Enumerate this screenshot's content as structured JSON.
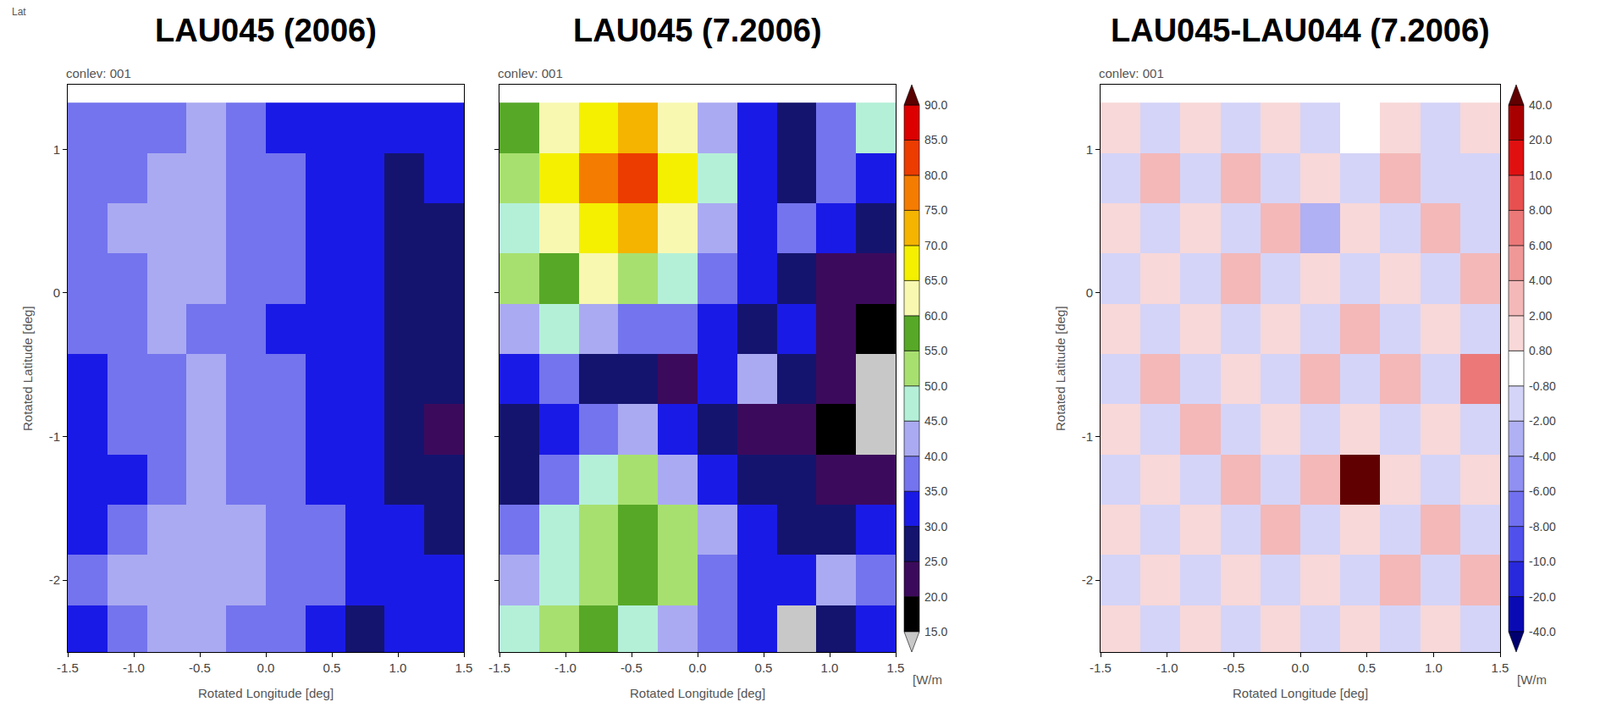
{
  "corner_label": "Lat",
  "chart_data": [
    {
      "type": "heatmap",
      "title": "LAU045 (2006)",
      "subtitle": "conlev: 001",
      "xlabel": "Rotated Longitude [deg]",
      "ylabel": "Rotated Latitude [deg]",
      "x": [
        -1.35,
        -1.05,
        -0.75,
        -0.45,
        -0.15,
        0.15,
        0.45,
        0.75,
        1.05,
        1.35
      ],
      "y": [
        -2.35,
        -2.0,
        -1.65,
        -1.3,
        -0.95,
        -0.6,
        -0.25,
        0.1,
        0.45,
        0.8,
        1.15
      ],
      "z": [
        [
          32,
          38,
          40,
          40,
          38,
          36,
          30,
          28,
          34,
          30
        ],
        [
          36,
          40,
          41,
          42,
          40,
          38,
          36,
          34,
          32,
          30
        ],
        [
          33,
          37,
          40,
          41,
          40,
          38,
          35,
          33,
          30,
          28
        ],
        [
          30,
          34,
          38,
          40,
          39,
          38,
          34,
          32,
          29,
          27
        ],
        [
          32,
          35,
          38,
          40,
          38,
          37,
          32,
          30,
          27,
          24
        ],
        [
          33,
          36,
          38,
          40,
          38,
          35,
          33,
          30,
          28,
          26
        ],
        [
          35,
          37,
          40,
          39,
          37,
          34,
          33,
          31,
          29,
          27
        ],
        [
          36,
          38,
          40,
          41,
          37,
          35,
          32,
          30,
          28,
          28
        ],
        [
          38,
          40,
          42,
          40,
          38,
          36,
          34,
          32,
          28,
          27
        ],
        [
          37,
          38,
          40,
          42,
          38,
          36,
          33,
          30,
          28,
          30
        ],
        [
          38,
          36,
          38,
          40,
          37,
          33,
          30,
          31,
          32,
          30
        ]
      ],
      "xlim": [
        -1.5,
        1.5
      ],
      "ylim": [
        -2.5,
        1.45
      ],
      "xticks": [
        -1.5,
        {
          "value": -1,
          "label": "-1.0"
        },
        -0.5,
        {
          "value": 0,
          "label": "0.0"
        },
        0.5,
        {
          "value": 1,
          "label": "1.0"
        },
        1.5
      ],
      "yticks": [
        -2,
        -1,
        0,
        1
      ]
    },
    {
      "type": "heatmap",
      "title": "LAU045 (7.2006)",
      "subtitle": "conlev: 001",
      "xlabel": "Rotated Longitude [deg]",
      "tick_labels": "x",
      "x": [
        -1.35,
        -1.05,
        -0.75,
        -0.45,
        -0.15,
        0.15,
        0.45,
        0.75,
        1.05,
        1.35
      ],
      "y": [
        -2.35,
        -2.0,
        -1.65,
        -1.3,
        -0.95,
        -0.6,
        -0.25,
        0.1,
        0.45,
        0.8,
        1.15
      ],
      "z": [
        [
          45,
          50,
          55,
          48,
          42,
          35,
          30,
          14,
          25,
          30
        ],
        [
          40,
          48,
          52,
          55,
          50,
          38,
          32,
          30,
          40,
          35
        ],
        [
          35,
          45,
          50,
          55,
          52,
          40,
          30,
          28,
          25,
          30
        ],
        [
          28,
          35,
          45,
          50,
          40,
          30,
          25,
          25,
          20,
          24
        ],
        [
          25,
          30,
          35,
          40,
          30,
          25,
          20,
          22,
          18,
          14
        ],
        [
          30,
          35,
          28,
          25,
          22,
          30,
          40,
          25,
          20,
          14
        ],
        [
          40,
          45,
          40,
          35,
          35,
          30,
          25,
          30,
          22,
          18
        ],
        [
          50,
          55,
          60,
          50,
          45,
          35,
          30,
          25,
          20,
          22
        ],
        [
          45,
          60,
          68,
          70,
          60,
          42,
          30,
          35,
          30,
          25
        ],
        [
          50,
          65,
          75,
          80,
          68,
          45,
          30,
          28,
          35,
          30
        ],
        [
          55,
          60,
          65,
          70,
          60,
          40,
          30,
          25,
          35,
          45
        ]
      ],
      "xlim": [
        -1.5,
        1.5
      ],
      "ylim": [
        -2.5,
        1.45
      ],
      "xticks": [
        -1.5,
        {
          "value": -1,
          "label": "-1.0"
        },
        -0.5,
        {
          "value": 0,
          "label": "0.0"
        },
        0.5,
        {
          "value": 1,
          "label": "1.0"
        },
        1.5
      ],
      "yticks": [
        -2,
        -1,
        0,
        1
      ],
      "colorbar": {
        "levels": [
          15,
          20,
          25,
          30,
          35,
          40,
          45,
          50,
          55,
          60,
          65,
          70,
          75,
          80,
          85,
          90
        ],
        "colors": [
          "#c8c8c8",
          "#000000",
          "#3c0a5c",
          "#14146e",
          "#1a1ae6",
          "#7474ee",
          "#aaaaf2",
          "#b4f0d8",
          "#a8e070",
          "#58a828",
          "#f8f8b0",
          "#f4f000",
          "#f4b400",
          "#f47c00",
          "#ec3c00",
          "#dc0000",
          "#5a0000"
        ],
        "ticks": [
          {
            "value": 15,
            "label": "15.0"
          },
          {
            "value": 20,
            "label": "20.0"
          },
          {
            "value": 25,
            "label": "25.0"
          },
          {
            "value": 30,
            "label": "30.0"
          },
          {
            "value": 35,
            "label": "35.0"
          },
          {
            "value": 40,
            "label": "40.0"
          },
          {
            "value": 45,
            "label": "45.0"
          },
          {
            "value": 50,
            "label": "50.0"
          },
          {
            "value": 55,
            "label": "55.0"
          },
          {
            "value": 60,
            "label": "60.0"
          },
          {
            "value": 65,
            "label": "65.0"
          },
          {
            "value": 70,
            "label": "70.0"
          },
          {
            "value": 75,
            "label": "75.0"
          },
          {
            "value": 80,
            "label": "80.0"
          },
          {
            "value": 85,
            "label": "85.0"
          },
          {
            "value": 90,
            "label": "90.0"
          }
        ],
        "unit": "[W/m"
      }
    },
    {
      "type": "heatmap",
      "title": "LAU045-LAU044 (7.2006)",
      "subtitle": "conlev: 001",
      "xlabel": "Rotated Longitude [deg]",
      "ylabel": "Rotated Latitude [deg]",
      "x": [
        -1.35,
        -1.05,
        -0.75,
        -0.45,
        -0.15,
        0.15,
        0.45,
        0.75,
        1.05,
        1.35
      ],
      "y": [
        -2.35,
        -2.0,
        -1.65,
        -1.3,
        -0.95,
        -0.6,
        -0.25,
        0.1,
        0.45,
        0.8,
        1.15
      ],
      "z": [
        [
          1,
          -1,
          1,
          -1,
          1,
          -1,
          1,
          -1,
          1,
          -1
        ],
        [
          -1,
          1,
          -2,
          1,
          -1,
          1,
          -1,
          2,
          -1,
          3
        ],
        [
          1,
          -1,
          1,
          -1,
          2,
          -1,
          1,
          -1,
          2,
          -1
        ],
        [
          -1,
          1,
          -1,
          2,
          -1,
          2,
          45,
          1,
          -1,
          1
        ],
        [
          1,
          -1,
          2,
          -1,
          1,
          -2,
          1,
          -2,
          1,
          -2
        ],
        [
          -1,
          2,
          -1,
          1,
          -2,
          2,
          -1,
          2,
          -1,
          6
        ],
        [
          1,
          -1,
          1,
          -2,
          1,
          -1,
          2,
          -1,
          1,
          -1
        ],
        [
          -1,
          1,
          -2,
          2,
          -1,
          1,
          -2,
          1,
          -1,
          2
        ],
        [
          1,
          -2,
          1,
          -1,
          2,
          -3,
          1,
          -1,
          2,
          -1
        ],
        [
          -1,
          2,
          -2,
          3,
          -1,
          1,
          -2,
          2,
          -1,
          -2
        ],
        [
          1,
          -1,
          1,
          -2,
          1,
          -1,
          0.5,
          1,
          -1,
          1
        ]
      ],
      "xlim": [
        -1.5,
        1.5
      ],
      "ylim": [
        -2.5,
        1.45
      ],
      "xticks": [
        -1.5,
        {
          "value": -1,
          "label": "-1.0"
        },
        -0.5,
        {
          "value": 0,
          "label": "0.0"
        },
        0.5,
        {
          "value": 1,
          "label": "1.0"
        },
        1.5
      ],
      "yticks": [
        -2,
        -1,
        0,
        1
      ],
      "colorbar": {
        "levels": [
          -40,
          -20,
          -10,
          -8,
          -6,
          -4,
          -2,
          -0.8,
          0.8,
          2,
          4,
          6,
          8,
          10,
          20,
          40
        ],
        "colors": [
          "#000070",
          "#0a0ab4",
          "#2828dc",
          "#5050ec",
          "#7070f0",
          "#9090f2",
          "#b0b0f4",
          "#d4d4f8",
          "#ffffff",
          "#f8d8d8",
          "#f4b8b8",
          "#f09898",
          "#ec7878",
          "#e85050",
          "#e01010",
          "#a80000",
          "#600000"
        ],
        "ticks": [
          {
            "value": 40,
            "label": "40.0"
          },
          {
            "value": 20,
            "label": "20.0"
          },
          {
            "value": 10,
            "label": "10.0"
          },
          {
            "value": 8,
            "label": "8.00"
          },
          {
            "value": 6,
            "label": "6.00"
          },
          {
            "value": 4,
            "label": "4.00"
          },
          {
            "value": 2,
            "label": "2.00"
          },
          {
            "value": 0.8,
            "label": "0.80"
          },
          {
            "value": -0.8,
            "label": "-0.80"
          },
          {
            "value": -2,
            "label": "-2.00"
          },
          {
            "value": -4,
            "label": "-4.00"
          },
          {
            "value": -6,
            "label": "-6.00"
          },
          {
            "value": -8,
            "label": "-8.00"
          },
          {
            "value": -10,
            "label": "-10.0"
          },
          {
            "value": -20,
            "label": "-20.0"
          },
          {
            "value": -40,
            "label": "-40.0"
          }
        ],
        "unit": "[W/m"
      }
    }
  ]
}
